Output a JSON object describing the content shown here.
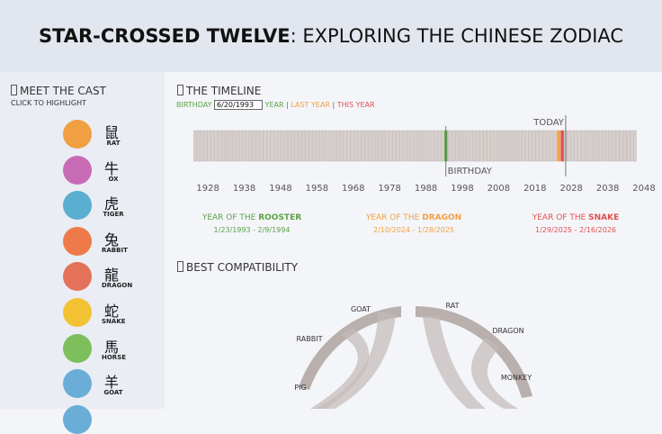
{
  "header": {
    "title_bold": "STAR-CROSSED TWELVE",
    "title_rest": ": EXPLORING THE CHINESE ZODIAC"
  },
  "cast": {
    "heading": "MEET THE CAST",
    "hint": "CLICK TO HIGHLIGHT",
    "animals": [
      {
        "char": "鼠",
        "name": "RAT",
        "color": "#f0a040"
      },
      {
        "char": "牛",
        "name": "OX",
        "color": "#c86bb5"
      },
      {
        "char": "虎",
        "name": "TIGER",
        "color": "#5aaed0"
      },
      {
        "char": "兔",
        "name": "RABBIT",
        "color": "#ee7a4a"
      },
      {
        "char": "龍",
        "name": "DRAGON",
        "color": "#e4715a"
      },
      {
        "char": "蛇",
        "name": "SNAKE",
        "color": "#f2c232"
      },
      {
        "char": "馬",
        "name": "HORSE",
        "color": "#7cbf5c"
      },
      {
        "char": "羊",
        "name": "GOAT",
        "color": "#6aaed8"
      }
    ]
  },
  "timeline": {
    "heading": "THE TIMELINE",
    "birthday_label": "BIRTHDAY",
    "birthday": "6/20/1993",
    "year_label": "YEAR",
    "separator": "|",
    "last_year_label": "LAST YEAR",
    "this_year_label": "THIS YEAR",
    "today_label": "TODAY",
    "today": 2026.45,
    "birthday_line_label": "BIRTHDAY",
    "xlim": [
      1924,
      2048
    ],
    "xticks": [
      1928,
      1938,
      1948,
      1958,
      1968,
      1978,
      1988,
      1998,
      2008,
      2018,
      2028,
      2038,
      2048
    ],
    "cards": [
      {
        "prefix": "YEAR OF THE ",
        "animal": "ROOSTER",
        "dates": "1/23/1993 - 2/9/1994",
        "start": "1/23/1993",
        "color": "#5aa346"
      },
      {
        "prefix": "YEAR OF THE ",
        "animal": "DRAGON",
        "dates": "2/10/2024 - 1/28/2025",
        "start": "2/10/2024",
        "color": "#f0a040"
      },
      {
        "prefix": "YEAR OF THE ",
        "animal": "SNAKE",
        "dates": "1/29/2025 - 2/16/2026",
        "start": "1/29/2025",
        "color": "#e05050"
      }
    ]
  },
  "compatibility": {
    "heading": "BEST COMPATIBILITY",
    "labels": [
      "GOAT",
      "RAT",
      "RABBIT",
      "DRAGON",
      "PIG",
      "MONKEY"
    ]
  }
}
